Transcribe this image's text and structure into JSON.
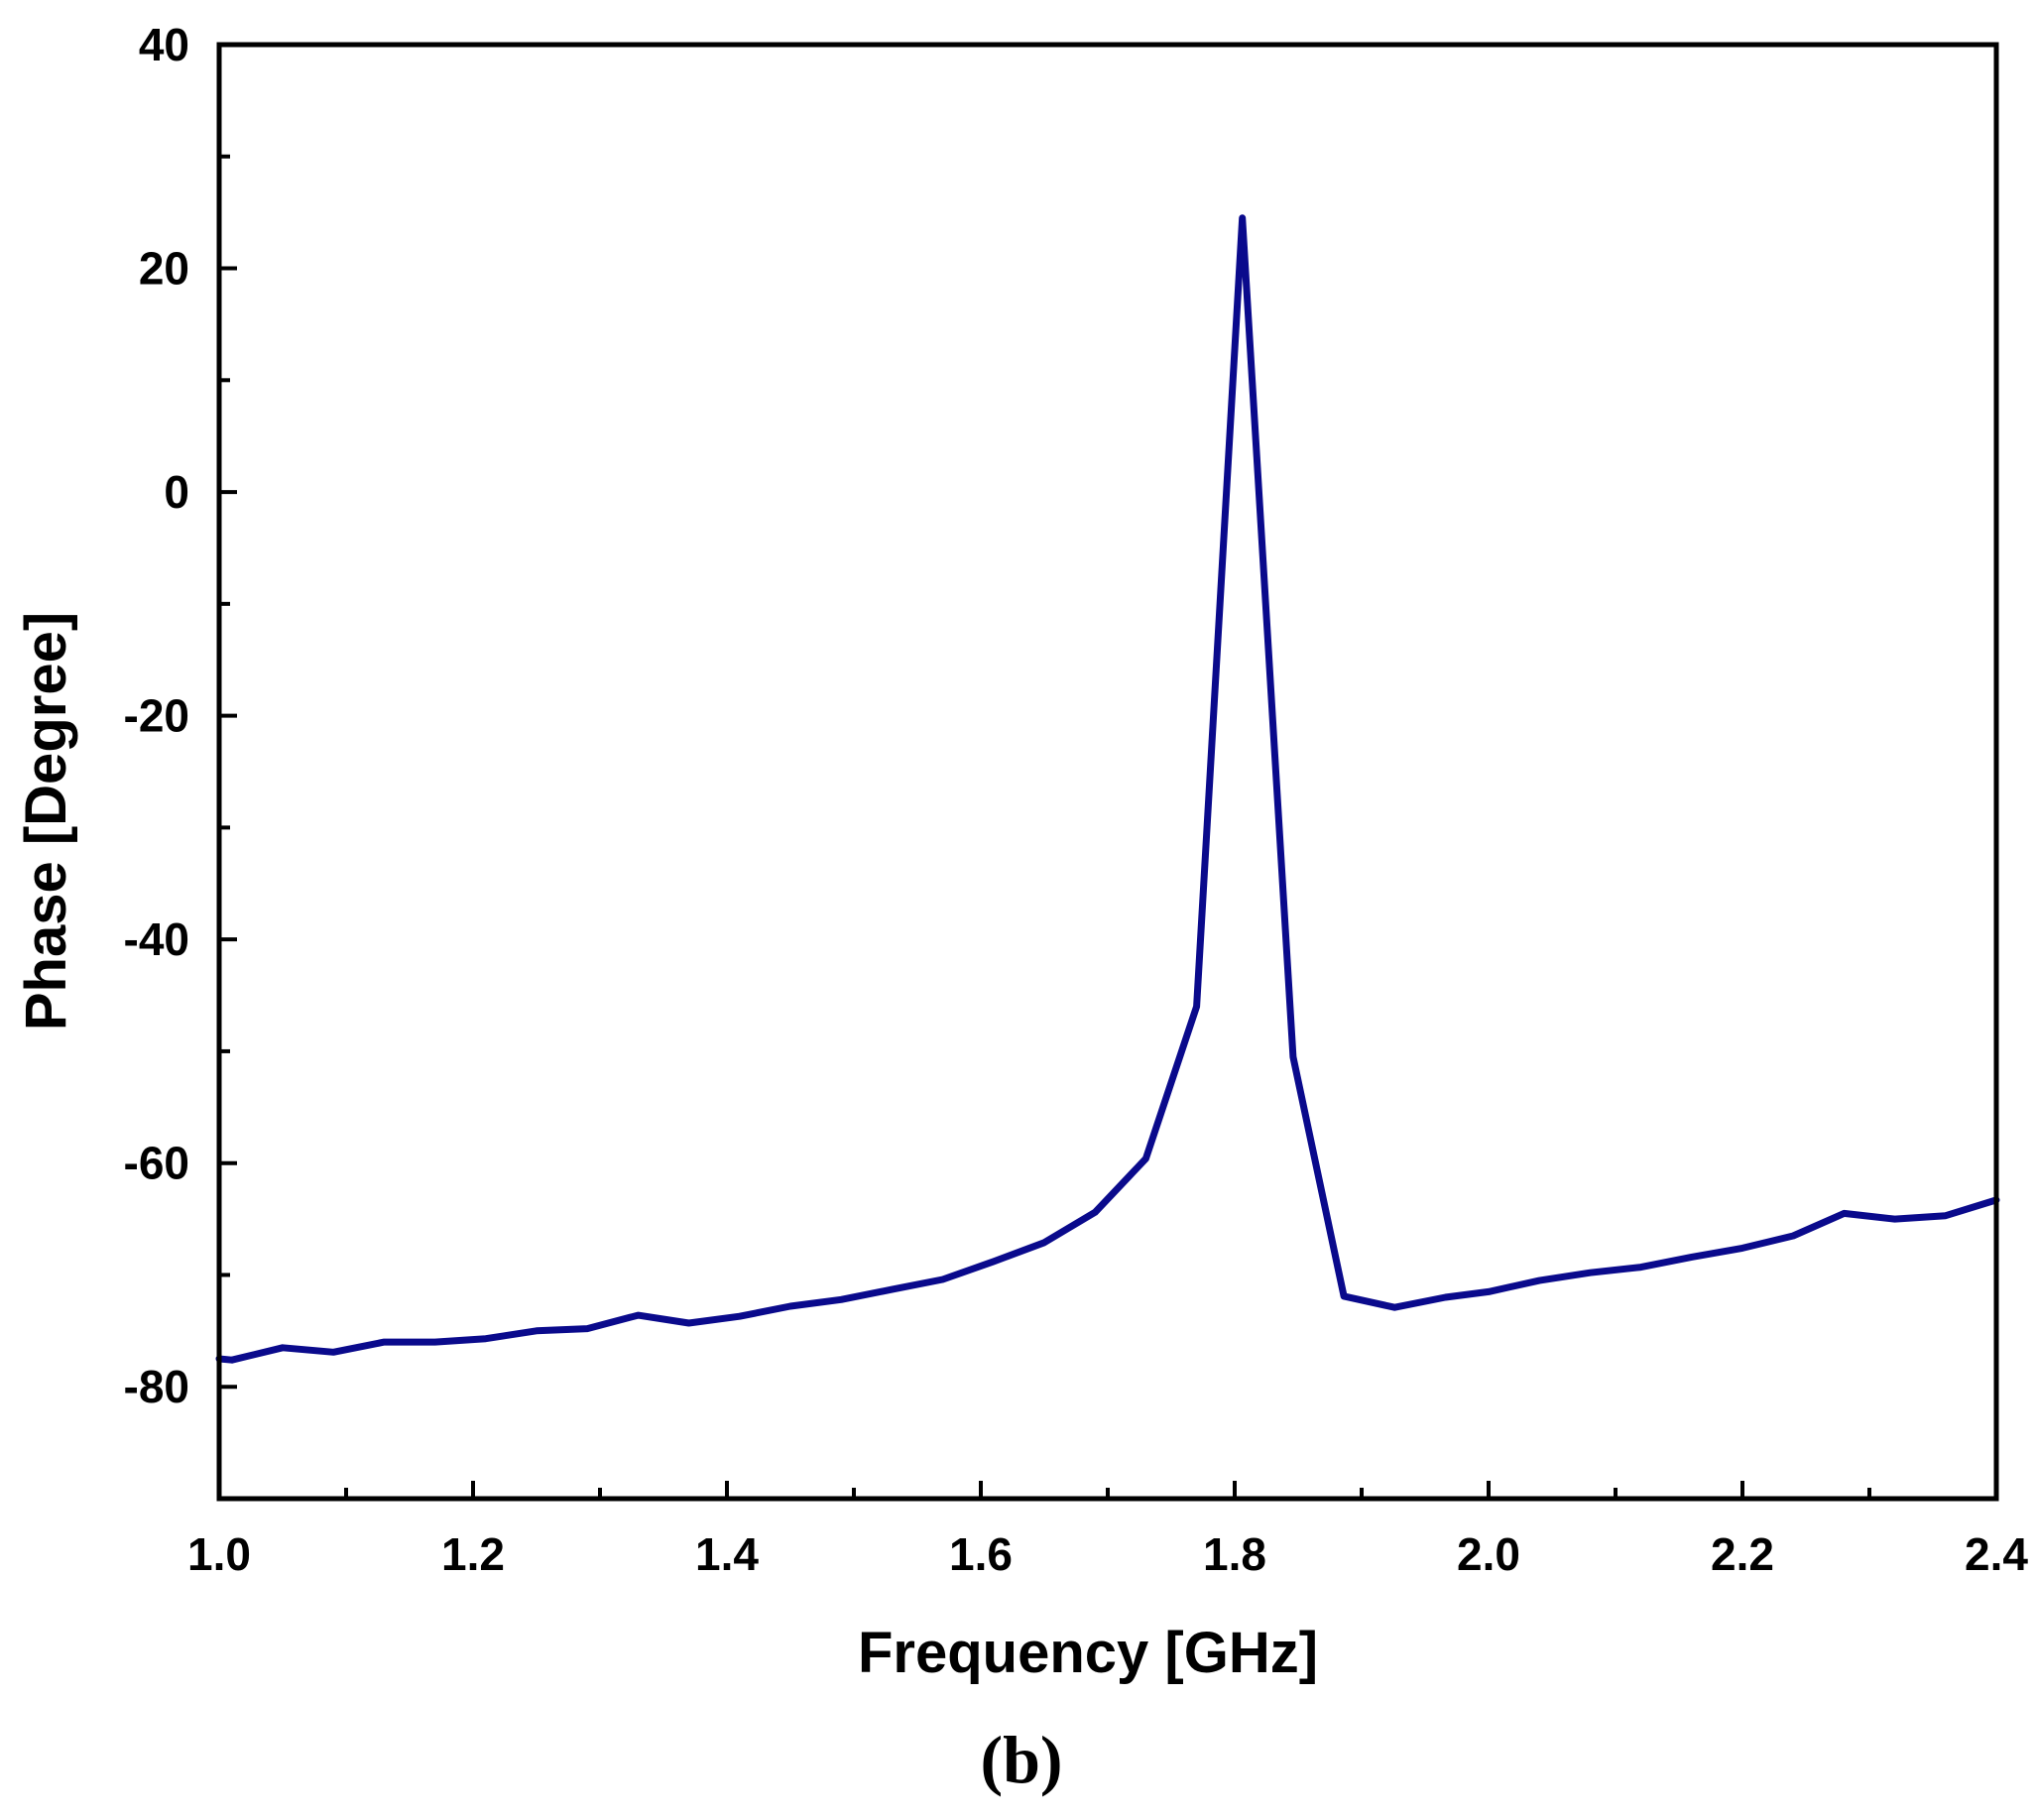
{
  "chart_data": {
    "type": "line",
    "xlabel": "Frequency [GHz]",
    "ylabel": "Phase [Degree]",
    "panel_label": "(b)",
    "xlim": [
      1.0,
      2.4
    ],
    "ylim": [
      -90,
      40
    ],
    "x_ticks": [
      "1.0",
      "1.2",
      "1.4",
      "1.6",
      "1.8",
      "2.0",
      "2.2",
      "2.4"
    ],
    "y_ticks": [
      "40",
      "20",
      "0",
      "-20",
      "-40",
      "-60",
      "-80"
    ],
    "grid": false,
    "legend": "none",
    "series": [
      {
        "color": "#0a0a8c",
        "x": [
          1.0,
          1.01,
          1.05,
          1.09,
          1.13,
          1.17,
          1.21,
          1.25,
          1.29,
          1.33,
          1.37,
          1.41,
          1.45,
          1.49,
          1.53,
          1.57,
          1.61,
          1.65,
          1.69,
          1.73,
          1.77,
          1.806,
          1.846,
          1.886,
          1.926,
          1.966,
          2.0,
          2.04,
          2.08,
          2.12,
          2.16,
          2.2,
          2.24,
          2.28,
          2.32,
          2.36,
          2.4
        ],
        "y": [
          -77.5,
          -77.6,
          -76.5,
          -76.9,
          -76.0,
          -76.0,
          -75.7,
          -75.0,
          -74.8,
          -73.6,
          -74.3,
          -73.7,
          -72.8,
          -72.2,
          -71.3,
          -70.4,
          -68.8,
          -67.1,
          -64.4,
          -59.6,
          -46.0,
          24.5,
          -50.5,
          -71.9,
          -72.9,
          -72.0,
          -71.5,
          -70.5,
          -69.8,
          -69.3,
          -68.4,
          -67.6,
          -66.5,
          -64.5,
          -65.0,
          -64.7,
          -63.3
        ]
      }
    ]
  }
}
